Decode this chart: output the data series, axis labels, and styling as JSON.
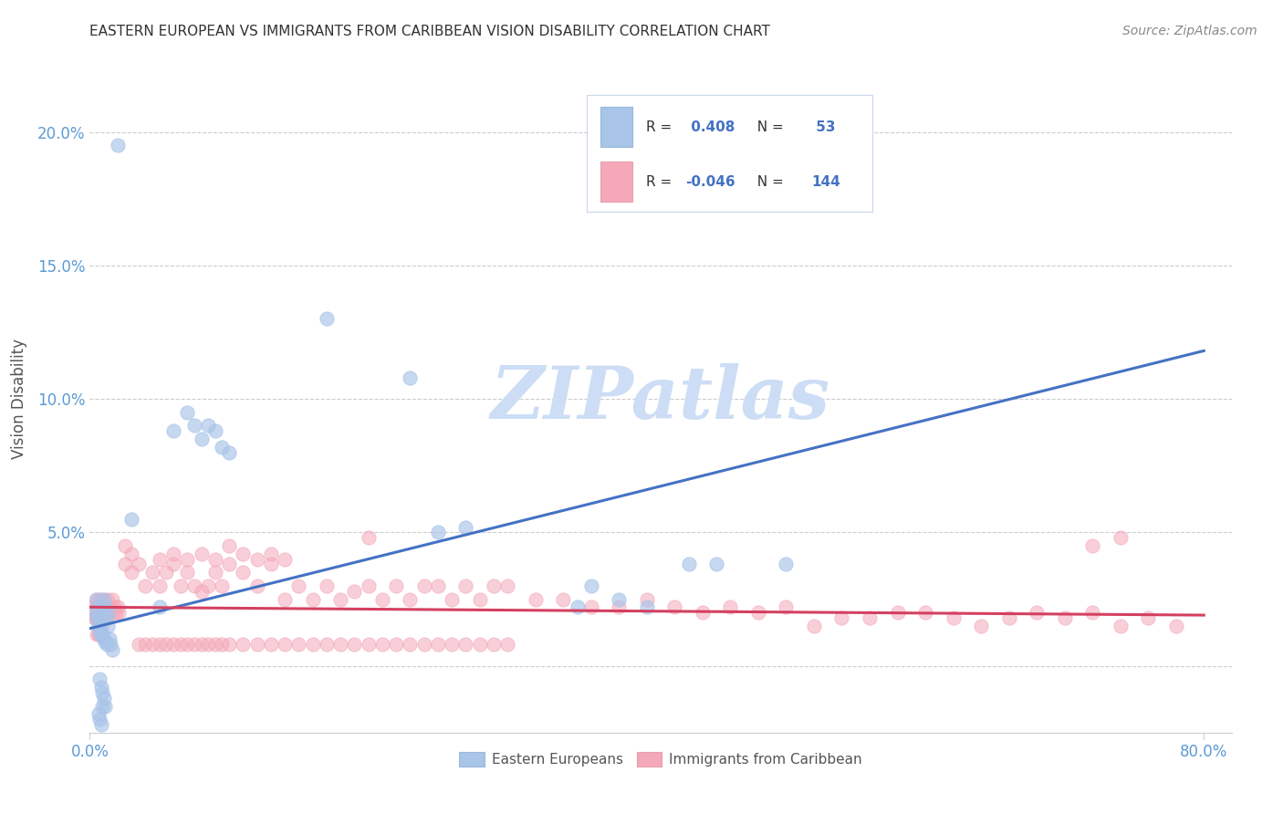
{
  "title": "EASTERN EUROPEAN VS IMMIGRANTS FROM CARIBBEAN VISION DISABILITY CORRELATION CHART",
  "source": "Source: ZipAtlas.com",
  "ylabel": "Vision Disability",
  "legend_R1": " 0.408",
  "legend_N1": " 53",
  "legend_R2": "-0.046",
  "legend_N2": "144",
  "color_blue": "#a8c4e8",
  "color_pink": "#f4a8b8",
  "line_blue": "#4472c4",
  "line_pink": "#d44060",
  "watermark_color": "#ccddf5",
  "blue_trend_x0": 0.0,
  "blue_trend_y0": 0.014,
  "blue_trend_x1": 0.8,
  "blue_trend_y1": 0.118,
  "pink_trend_x0": 0.0,
  "pink_trend_y0": 0.022,
  "pink_trend_x1": 0.8,
  "pink_trend_y1": 0.019,
  "xlim": [
    0.0,
    0.82
  ],
  "ylim": [
    -0.025,
    0.225
  ],
  "yticks": [
    0.0,
    0.05,
    0.1,
    0.15,
    0.2
  ],
  "ytick_labels": [
    "",
    "5.0%",
    "10.0%",
    "15.0%",
    "20.0%"
  ],
  "xticks": [
    0.0,
    0.8
  ],
  "xtick_labels": [
    "0.0%",
    "80.0%"
  ],
  "blue_x": [
    0.004,
    0.005,
    0.006,
    0.007,
    0.008,
    0.009,
    0.01,
    0.011,
    0.012,
    0.013,
    0.014,
    0.015,
    0.016,
    0.005,
    0.006,
    0.007,
    0.008,
    0.009,
    0.01,
    0.011,
    0.012,
    0.013,
    0.007,
    0.008,
    0.009,
    0.01,
    0.011,
    0.006,
    0.007,
    0.008,
    0.009,
    0.06,
    0.07,
    0.075,
    0.08,
    0.085,
    0.09,
    0.095,
    0.1,
    0.23,
    0.25,
    0.27,
    0.43,
    0.45,
    0.5,
    0.36,
    0.38,
    0.4,
    0.17,
    0.35,
    0.03,
    0.05,
    0.02
  ],
  "blue_y": [
    0.02,
    0.018,
    0.015,
    0.013,
    0.012,
    0.011,
    0.01,
    0.009,
    0.008,
    0.02,
    0.01,
    0.008,
    0.006,
    0.025,
    0.022,
    0.018,
    0.015,
    0.012,
    0.025,
    0.022,
    0.018,
    0.015,
    -0.005,
    -0.008,
    -0.01,
    -0.012,
    -0.015,
    -0.018,
    -0.02,
    -0.022,
    -0.015,
    0.088,
    0.095,
    0.09,
    0.085,
    0.09,
    0.088,
    0.082,
    0.08,
    0.108,
    0.05,
    0.052,
    0.038,
    0.038,
    0.038,
    0.03,
    0.025,
    0.022,
    0.13,
    0.022,
    0.055,
    0.022,
    0.195
  ],
  "pink_x": [
    0.002,
    0.003,
    0.004,
    0.005,
    0.006,
    0.007,
    0.008,
    0.009,
    0.01,
    0.011,
    0.012,
    0.013,
    0.014,
    0.015,
    0.016,
    0.017,
    0.018,
    0.019,
    0.02,
    0.021,
    0.003,
    0.004,
    0.005,
    0.006,
    0.007,
    0.008,
    0.009,
    0.01,
    0.011,
    0.012,
    0.005,
    0.006,
    0.007,
    0.008,
    0.009,
    0.025,
    0.03,
    0.035,
    0.04,
    0.045,
    0.05,
    0.055,
    0.06,
    0.065,
    0.07,
    0.075,
    0.08,
    0.085,
    0.09,
    0.095,
    0.1,
    0.11,
    0.12,
    0.13,
    0.14,
    0.15,
    0.16,
    0.17,
    0.18,
    0.19,
    0.2,
    0.21,
    0.22,
    0.23,
    0.24,
    0.25,
    0.26,
    0.27,
    0.28,
    0.29,
    0.3,
    0.32,
    0.34,
    0.36,
    0.38,
    0.4,
    0.42,
    0.44,
    0.46,
    0.48,
    0.5,
    0.52,
    0.54,
    0.56,
    0.58,
    0.6,
    0.62,
    0.64,
    0.66,
    0.68,
    0.7,
    0.72,
    0.74,
    0.76,
    0.78,
    0.025,
    0.03,
    0.05,
    0.06,
    0.07,
    0.08,
    0.09,
    0.1,
    0.11,
    0.12,
    0.13,
    0.14,
    0.035,
    0.04,
    0.045,
    0.05,
    0.055,
    0.06,
    0.065,
    0.07,
    0.075,
    0.08,
    0.085,
    0.09,
    0.095,
    0.1,
    0.11,
    0.12,
    0.13,
    0.14,
    0.15,
    0.16,
    0.17,
    0.18,
    0.19,
    0.2,
    0.21,
    0.22,
    0.23,
    0.24,
    0.25,
    0.26,
    0.27,
    0.28,
    0.29,
    0.3,
    0.72,
    0.74,
    0.2
  ],
  "pink_y": [
    0.022,
    0.02,
    0.025,
    0.022,
    0.02,
    0.025,
    0.022,
    0.025,
    0.022,
    0.02,
    0.022,
    0.025,
    0.02,
    0.022,
    0.025,
    0.02,
    0.022,
    0.02,
    0.022,
    0.02,
    0.018,
    0.018,
    0.018,
    0.018,
    0.018,
    0.018,
    0.018,
    0.018,
    0.018,
    0.018,
    0.012,
    0.012,
    0.012,
    0.012,
    0.012,
    0.038,
    0.035,
    0.038,
    0.03,
    0.035,
    0.03,
    0.035,
    0.038,
    0.03,
    0.035,
    0.03,
    0.028,
    0.03,
    0.035,
    0.03,
    0.038,
    0.035,
    0.03,
    0.038,
    0.025,
    0.03,
    0.025,
    0.03,
    0.025,
    0.028,
    0.03,
    0.025,
    0.03,
    0.025,
    0.03,
    0.03,
    0.025,
    0.03,
    0.025,
    0.03,
    0.03,
    0.025,
    0.025,
    0.022,
    0.022,
    0.025,
    0.022,
    0.02,
    0.022,
    0.02,
    0.022,
    0.015,
    0.018,
    0.018,
    0.02,
    0.02,
    0.018,
    0.015,
    0.018,
    0.02,
    0.018,
    0.02,
    0.015,
    0.018,
    0.015,
    0.045,
    0.042,
    0.04,
    0.042,
    0.04,
    0.042,
    0.04,
    0.045,
    0.042,
    0.04,
    0.042,
    0.04,
    0.008,
    0.008,
    0.008,
    0.008,
    0.008,
    0.008,
    0.008,
    0.008,
    0.008,
    0.008,
    0.008,
    0.008,
    0.008,
    0.008,
    0.008,
    0.008,
    0.008,
    0.008,
    0.008,
    0.008,
    0.008,
    0.008,
    0.008,
    0.008,
    0.008,
    0.008,
    0.008,
    0.008,
    0.008,
    0.008,
    0.008,
    0.008,
    0.008,
    0.008,
    0.045,
    0.048,
    0.048
  ]
}
